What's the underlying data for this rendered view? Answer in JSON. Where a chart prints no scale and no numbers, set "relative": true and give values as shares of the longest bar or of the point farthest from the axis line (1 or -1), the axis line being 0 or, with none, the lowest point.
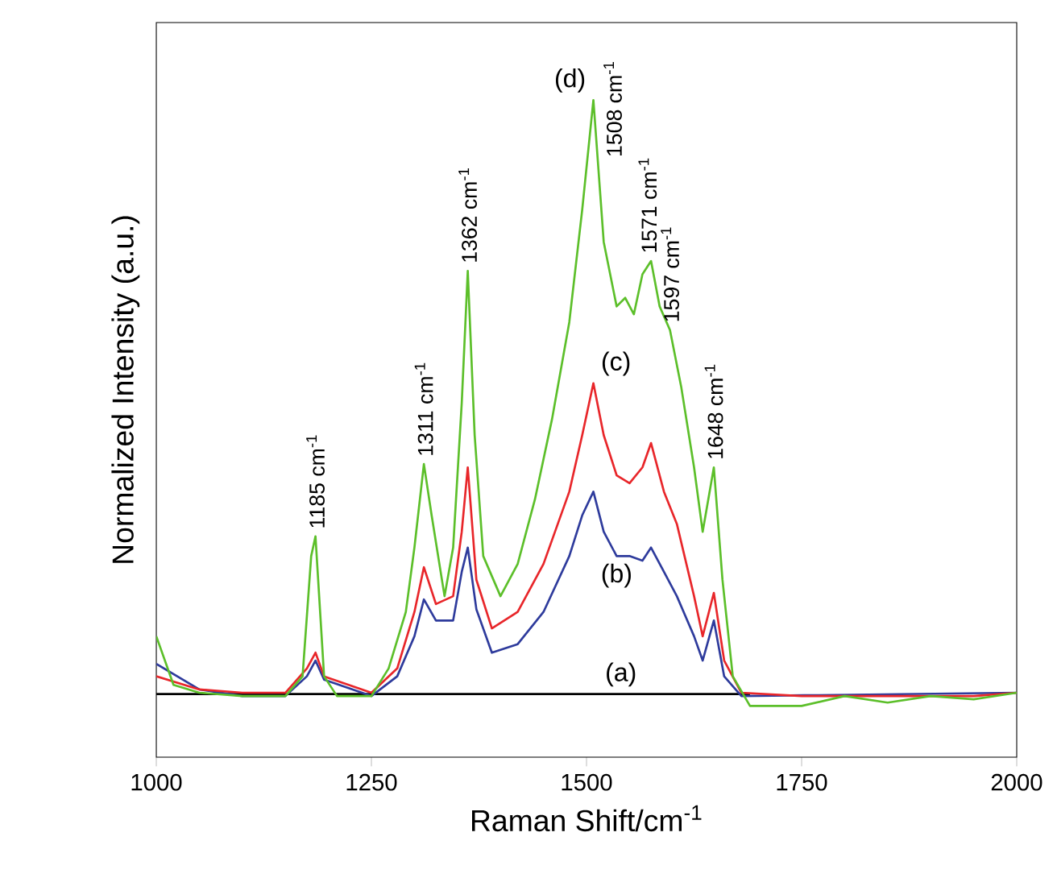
{
  "chart_data": {
    "type": "line",
    "relative": true,
    "xlabel": "Raman Shift/cm$^{-1}$",
    "ylabel": "Normalized Intensity (a.u.)",
    "xlim": [
      1000,
      2000
    ],
    "xticks": [
      1000,
      1250,
      1500,
      1750,
      2000
    ],
    "legend": false,
    "grid": false,
    "marker": "none",
    "line_style": "solid",
    "series": [
      {
        "name": "(a)",
        "color": "#000000",
        "x": [
          1000,
          1270,
          1540,
          1690
        ],
        "values": [
          0.096,
          0.096,
          0.096,
          0.096
        ]
      },
      {
        "name": "(b)",
        "color": "#2e3b9c",
        "x": [
          1000,
          1050,
          1100,
          1150,
          1175,
          1185,
          1195,
          1250,
          1280,
          1300,
          1311,
          1325,
          1345,
          1355,
          1362,
          1372,
          1390,
          1420,
          1450,
          1480,
          1495,
          1508,
          1520,
          1535,
          1550,
          1565,
          1575,
          1590,
          1605,
          1625,
          1635,
          1648,
          1660,
          1680,
          2000
        ],
        "values": [
          0.142,
          0.103,
          0.093,
          0.093,
          0.123,
          0.147,
          0.118,
          0.093,
          0.123,
          0.184,
          0.24,
          0.208,
          0.208,
          0.282,
          0.319,
          0.225,
          0.159,
          0.172,
          0.221,
          0.306,
          0.368,
          0.404,
          0.343,
          0.306,
          0.306,
          0.299,
          0.319,
          0.282,
          0.245,
          0.184,
          0.147,
          0.208,
          0.123,
          0.093,
          0.098
        ]
      },
      {
        "name": "(c)",
        "color": "#e8262a",
        "x": [
          1000,
          1050,
          1100,
          1150,
          1175,
          1185,
          1195,
          1250,
          1280,
          1300,
          1311,
          1325,
          1345,
          1355,
          1362,
          1372,
          1390,
          1420,
          1450,
          1480,
          1495,
          1508,
          1520,
          1535,
          1550,
          1565,
          1575,
          1590,
          1605,
          1625,
          1635,
          1648,
          1660,
          1680,
          1750,
          1850,
          1950,
          2000
        ],
        "values": [
          0.123,
          0.103,
          0.098,
          0.098,
          0.135,
          0.159,
          0.123,
          0.098,
          0.135,
          0.221,
          0.289,
          0.233,
          0.245,
          0.343,
          0.441,
          0.27,
          0.196,
          0.221,
          0.294,
          0.404,
          0.49,
          0.569,
          0.49,
          0.429,
          0.417,
          0.441,
          0.478,
          0.404,
          0.355,
          0.245,
          0.184,
          0.25,
          0.147,
          0.098,
          0.093,
          0.093,
          0.093,
          0.098
        ]
      },
      {
        "name": "(d)",
        "color": "#5cbf2a",
        "x": [
          1000,
          1020,
          1050,
          1100,
          1150,
          1170,
          1180,
          1185,
          1195,
          1210,
          1250,
          1270,
          1290,
          1300,
          1311,
          1320,
          1335,
          1345,
          1355,
          1362,
          1370,
          1380,
          1400,
          1420,
          1440,
          1460,
          1480,
          1495,
          1508,
          1520,
          1535,
          1545,
          1555,
          1565,
          1575,
          1585,
          1597,
          1610,
          1625,
          1635,
          1648,
          1658,
          1670,
          1690,
          1750,
          1800,
          1850,
          1900,
          1950,
          2000
        ],
        "values": [
          0.184,
          0.11,
          0.098,
          0.093,
          0.093,
          0.123,
          0.306,
          0.336,
          0.123,
          0.093,
          0.093,
          0.135,
          0.221,
          0.319,
          0.446,
          0.368,
          0.245,
          0.319,
          0.539,
          0.74,
          0.49,
          0.306,
          0.245,
          0.294,
          0.392,
          0.515,
          0.662,
          0.833,
          1,
          0.784,
          0.686,
          0.699,
          0.674,
          0.735,
          0.755,
          0.686,
          0.65,
          0.564,
          0.441,
          0.343,
          0.441,
          0.27,
          0.123,
          0.078,
          0.078,
          0.093,
          0.083,
          0.093,
          0.088,
          0.098
        ]
      }
    ],
    "annotations": [
      {
        "text": "1185 cm$^{-1}$",
        "x": 1185,
        "y": 0.336
      },
      {
        "text": "1311 cm$^{-1}$",
        "x": 1311,
        "y": 0.446
      },
      {
        "text": "1362 cm$^{-1}$",
        "x": 1362,
        "y": 0.74
      },
      {
        "text": "1508 cm$^{-1}$",
        "x": 1508,
        "y": 1
      },
      {
        "text": "1571 cm$^{-1}$",
        "x": 1571,
        "y": 0.755
      },
      {
        "text": "1597 cm$^{-1}$",
        "x": 1597,
        "y": 0.65
      },
      {
        "text": "1648 cm$^{-1}$",
        "x": 1648,
        "y": 0.441
      }
    ]
  }
}
